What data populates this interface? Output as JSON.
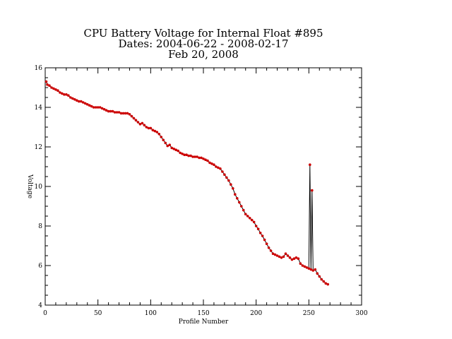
{
  "chart_data": {
    "type": "line",
    "title": [
      "CPU Battery Voltage for Internal Float #895",
      "Dates:  2004-06-22 -  2008-02-17",
      "Feb 20, 2008"
    ],
    "xlabel": "Profile Number",
    "ylabel": "Voltage",
    "xlim": [
      0,
      300
    ],
    "ylim": [
      4,
      16
    ],
    "xticks": [
      0,
      50,
      100,
      150,
      200,
      250,
      300
    ],
    "yticks": [
      4,
      6,
      8,
      10,
      12,
      14,
      16
    ],
    "grid": false,
    "colors": {
      "line": "#000000",
      "marker": "#cc0000"
    },
    "series": [
      {
        "x": [
          1,
          2,
          4,
          6,
          8,
          10,
          12,
          14,
          16,
          18,
          20,
          22,
          24,
          26,
          28,
          30,
          32,
          34,
          36,
          38,
          40,
          42,
          44,
          46,
          48,
          50,
          52,
          54,
          56,
          58,
          60,
          62,
          64,
          66,
          68,
          70,
          72,
          74,
          76,
          78,
          80,
          82,
          84,
          86,
          88,
          90,
          92,
          94,
          96,
          98,
          100,
          102,
          104,
          106,
          108,
          110,
          112,
          114,
          116,
          118,
          120,
          122,
          124,
          126,
          128,
          130,
          132,
          134,
          136,
          138,
          140,
          142,
          144,
          146,
          148,
          150,
          152,
          154,
          156,
          158,
          160,
          162,
          164,
          166,
          168,
          170,
          172,
          174,
          176,
          178,
          180,
          182,
          184,
          186,
          188,
          190,
          192,
          194,
          196,
          198,
          200,
          202,
          204,
          206,
          208,
          210,
          212,
          214,
          216,
          218,
          220,
          222,
          224,
          226,
          228,
          230,
          232,
          234,
          236,
          238,
          240,
          242,
          244,
          246,
          248,
          250,
          251,
          252,
          253,
          254,
          256,
          258,
          260,
          262,
          264,
          266,
          268
        ],
        "y": [
          15.3,
          15.15,
          15.1,
          15.0,
          14.95,
          14.9,
          14.85,
          14.75,
          14.7,
          14.65,
          14.65,
          14.6,
          14.5,
          14.45,
          14.4,
          14.35,
          14.3,
          14.3,
          14.25,
          14.2,
          14.15,
          14.1,
          14.05,
          14.0,
          14.0,
          14.0,
          14.0,
          13.95,
          13.9,
          13.85,
          13.8,
          13.8,
          13.8,
          13.75,
          13.75,
          13.75,
          13.7,
          13.7,
          13.7,
          13.7,
          13.65,
          13.55,
          13.45,
          13.35,
          13.25,
          13.15,
          13.2,
          13.1,
          13.0,
          12.95,
          12.95,
          12.85,
          12.8,
          12.75,
          12.65,
          12.5,
          12.35,
          12.2,
          12.05,
          12.1,
          11.95,
          11.9,
          11.85,
          11.8,
          11.7,
          11.65,
          11.6,
          11.6,
          11.55,
          11.55,
          11.5,
          11.5,
          11.5,
          11.45,
          11.45,
          11.4,
          11.35,
          11.3,
          11.2,
          11.15,
          11.1,
          11.0,
          10.95,
          10.9,
          10.75,
          10.6,
          10.45,
          10.3,
          10.1,
          9.9,
          9.6,
          9.4,
          9.2,
          9.0,
          8.8,
          8.6,
          8.5,
          8.4,
          8.3,
          8.2,
          8.0,
          7.85,
          7.65,
          7.5,
          7.3,
          7.1,
          6.9,
          6.75,
          6.6,
          6.55,
          6.5,
          6.45,
          6.4,
          6.45,
          6.6,
          6.5,
          6.4,
          6.3,
          6.35,
          6.4,
          6.35,
          6.1,
          6.0,
          5.95,
          5.9,
          5.85,
          11.1,
          5.8,
          9.8,
          5.75,
          5.8,
          5.6,
          5.45,
          5.3,
          5.2,
          5.1,
          5.05
        ]
      }
    ]
  }
}
